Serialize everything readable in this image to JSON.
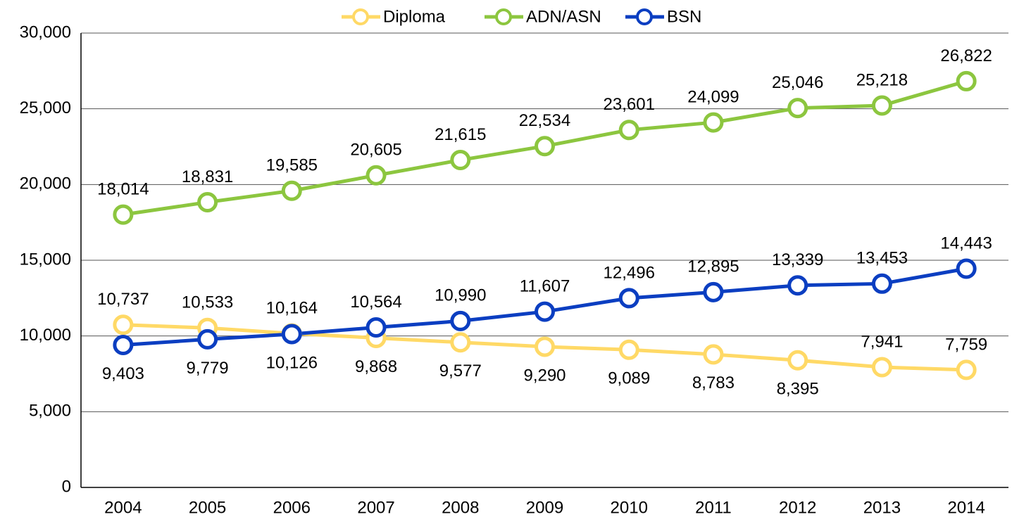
{
  "chart_data": {
    "type": "line",
    "categories": [
      "2004",
      "2005",
      "2006",
      "2007",
      "2008",
      "2009",
      "2010",
      "2011",
      "2012",
      "2013",
      "2014"
    ],
    "series": [
      {
        "name": "Diploma",
        "color": "#ffd966",
        "values": [
          10737,
          10533,
          10164,
          9868,
          9577,
          9290,
          9089,
          8783,
          8395,
          7941,
          7759
        ],
        "value_labels": [
          "10,737",
          "10,533",
          "10,164",
          "9,868",
          "9,577",
          "9,290",
          "9,089",
          "8,783",
          "8,395",
          "7,941",
          "7,759"
        ]
      },
      {
        "name": "ADN/ASN",
        "color": "#8cc63f",
        "values": [
          18014,
          18831,
          19585,
          20605,
          21615,
          22534,
          23601,
          24099,
          25046,
          25218,
          26822
        ],
        "value_labels": [
          "18,014",
          "18,831",
          "19,585",
          "20,605",
          "21,615",
          "22,534",
          "23,601",
          "24,099",
          "25,046",
          "25,218",
          "26,822"
        ]
      },
      {
        "name": "BSN",
        "color": "#0b3ec1",
        "values": [
          9403,
          9779,
          10126,
          10564,
          10990,
          11607,
          12496,
          12895,
          13339,
          13453,
          14443
        ],
        "value_labels": [
          "9,403",
          "9,779",
          "10,126",
          "10,564",
          "10,990",
          "11,607",
          "12,496",
          "12,895",
          "13,339",
          "13,453",
          "14,443"
        ]
      }
    ],
    "ylim": [
      0,
      30000
    ],
    "yticks": [
      0,
      {
        "value": 5000,
        "label": "5,000"
      },
      {
        "value": 10000,
        "label": "10,000"
      },
      {
        "value": 15000,
        "label": "15,000"
      },
      {
        "value": 20000,
        "label": "20,000"
      },
      {
        "value": 25000,
        "label": "25,000"
      },
      {
        "value": 30000,
        "label": "30,000"
      }
    ],
    "grid": true,
    "legend": "top"
  }
}
